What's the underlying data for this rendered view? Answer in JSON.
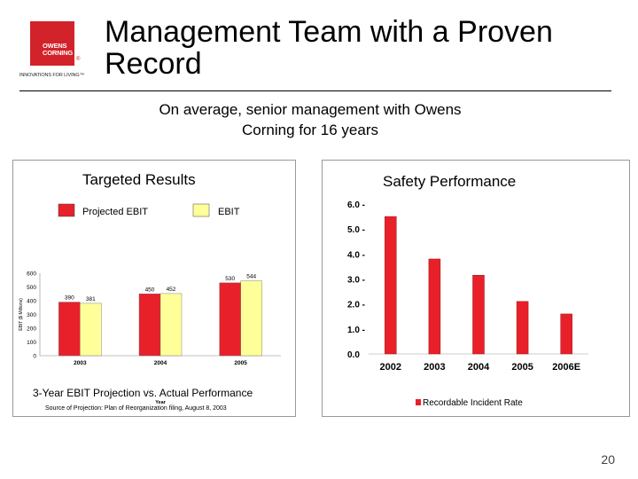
{
  "logo": {
    "brand_line1": "OWENS",
    "brand_line2": "CORNING",
    "registered": "®",
    "tagline": "INNOVATIONS FOR LIVING™",
    "brand_color": "#d2232a"
  },
  "slide": {
    "title": "Management Team with a Proven Record",
    "subtitle": "On average, senior management with Owens Corning for 16 years",
    "page_number": "20"
  },
  "chart_data": [
    {
      "type": "bar",
      "title": "Targeted Results",
      "caption": "3-Year EBIT Projection vs. Actual Performance",
      "source": "Source of Projection: Plan of Reorganization filing, August 8, 2003",
      "xlabel": "Year",
      "ylabel": "EBIT ($ Millions)",
      "ylim": [
        0,
        600
      ],
      "yticks": [
        "0",
        "100",
        "200",
        "300",
        "400",
        "500",
        "600"
      ],
      "categories": [
        "2003",
        "2004",
        "2005"
      ],
      "series": [
        {
          "name": "Projected EBIT",
          "color": "#e8202a",
          "values": [
            390,
            450,
            530
          ],
          "labels": [
            "390",
            "450",
            "530"
          ]
        },
        {
          "name": "EBIT",
          "color": "#ffff99",
          "values": [
            381,
            452,
            544
          ],
          "labels": [
            "381",
            "452",
            "544"
          ]
        }
      ]
    },
    {
      "type": "bar",
      "title": "Safety Performance",
      "legend": "Recordable Incident Rate",
      "color": "#e8202a",
      "ylim": [
        0,
        6
      ],
      "yticks": [
        "0.0",
        "1.0 -",
        "2.0 -",
        "3.0 -",
        "4.0 -",
        "5.0 -",
        "6.0 -"
      ],
      "categories": [
        "2002",
        "2003",
        "2004",
        "2005",
        "2006E"
      ],
      "values": [
        5.5,
        3.8,
        3.15,
        2.1,
        1.6
      ]
    }
  ]
}
